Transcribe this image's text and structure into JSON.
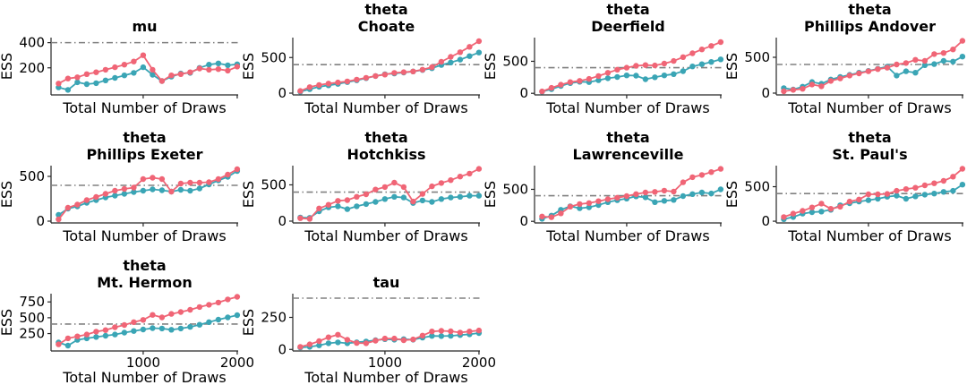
{
  "figure": {
    "background": "#ffffff",
    "colors": {
      "series_pink": "#f06576",
      "series_teal": "#3aa5b5",
      "reference_line": "#808080",
      "axis": "#262626",
      "text": "#000000"
    }
  },
  "chart_data": {
    "type": "line",
    "layout": "facet-grid-4-columns",
    "xlabel": "Total Number of Draws",
    "ylabel": "ESS",
    "x": [
      100,
      200,
      300,
      400,
      500,
      600,
      700,
      800,
      900,
      1000,
      1100,
      1200,
      1300,
      1400,
      1500,
      1600,
      1700,
      1800,
      1900,
      2000
    ],
    "x_ticks": [
      1000,
      2000
    ],
    "xlim": [
      20,
      2010
    ],
    "reference_line": {
      "y": 400,
      "style": "dash-dot",
      "color": "#808080"
    },
    "series_colors": {
      "pink": "#f06576",
      "teal": "#3aa5b5"
    },
    "facets": [
      {
        "id": "mu",
        "title_lines": [
          "mu"
        ],
        "y_ticks": [
          200,
          400
        ],
        "ylim": [
          -15,
          440
        ],
        "show_x_tick_labels": false,
        "pink": [
          75,
          115,
          125,
          150,
          165,
          185,
          205,
          225,
          250,
          300,
          185,
          95,
          140,
          150,
          165,
          195,
          185,
          190,
          178,
          210
        ],
        "teal": [
          45,
          25,
          85,
          70,
          78,
          100,
          120,
          140,
          160,
          205,
          145,
          95,
          130,
          155,
          160,
          200,
          225,
          235,
          220,
          228
        ]
      },
      {
        "id": "theta-choate",
        "title_lines": [
          "theta",
          "Choate"
        ],
        "y_ticks": [
          0,
          500
        ],
        "ylim": [
          -25,
          780
        ],
        "show_x_tick_labels": false,
        "pink": [
          30,
          85,
          115,
          135,
          150,
          165,
          190,
          215,
          240,
          260,
          285,
          295,
          305,
          330,
          365,
          440,
          510,
          575,
          650,
          730
        ],
        "teal": [
          20,
          55,
          90,
          110,
          130,
          155,
          180,
          210,
          240,
          265,
          275,
          290,
          305,
          325,
          350,
          395,
          430,
          470,
          520,
          570
        ]
      },
      {
        "id": "theta-deerfield",
        "title_lines": [
          "theta",
          "Deerfield"
        ],
        "y_ticks": [
          0,
          500
        ],
        "ylim": [
          -25,
          870
        ],
        "show_x_tick_labels": false,
        "pink": [
          30,
          85,
          135,
          175,
          195,
          225,
          270,
          320,
          370,
          400,
          430,
          440,
          435,
          465,
          505,
          565,
          625,
          685,
          740,
          800
        ],
        "teal": [
          25,
          65,
          115,
          160,
          180,
          175,
          205,
          235,
          255,
          280,
          275,
          220,
          250,
          280,
          300,
          345,
          420,
          455,
          490,
          530
        ]
      },
      {
        "id": "theta-phillips-andover",
        "title_lines": [
          "theta",
          "Phillips Andover"
        ],
        "y_ticks": [
          0,
          500
        ],
        "ylim": [
          -25,
          775
        ],
        "show_x_tick_labels": false,
        "pink": [
          25,
          45,
          60,
          120,
          95,
          170,
          205,
          245,
          275,
          305,
          335,
          355,
          400,
          420,
          465,
          450,
          545,
          560,
          610,
          730
        ],
        "teal": [
          70,
          50,
          90,
          155,
          130,
          190,
          225,
          255,
          285,
          310,
          340,
          370,
          245,
          305,
          285,
          390,
          405,
          450,
          440,
          510
        ]
      },
      {
        "id": "theta-phillips-exeter",
        "title_lines": [
          "theta",
          "Phillips Exeter"
        ],
        "y_ticks": [
          0,
          500
        ],
        "ylim": [
          -20,
          620
        ],
        "show_x_tick_labels": false,
        "pink": [
          20,
          150,
          185,
          235,
          270,
          305,
          340,
          360,
          375,
          470,
          485,
          470,
          330,
          420,
          430,
          430,
          435,
          470,
          520,
          580
        ],
        "teal": [
          70,
          140,
          165,
          205,
          235,
          265,
          285,
          305,
          325,
          340,
          355,
          345,
          330,
          350,
          340,
          365,
          410,
          455,
          495,
          560
        ]
      },
      {
        "id": "theta-hotchkiss",
        "title_lines": [
          "theta",
          "Hotchkiss"
        ],
        "y_ticks": [
          0,
          500
        ],
        "ylim": [
          -25,
          765
        ],
        "show_x_tick_labels": false,
        "pink": [
          40,
          30,
          175,
          225,
          280,
          290,
          335,
          370,
          435,
          470,
          530,
          470,
          270,
          375,
          480,
          525,
          565,
          615,
          655,
          720
        ],
        "teal": [
          50,
          45,
          135,
          190,
          205,
          165,
          205,
          235,
          265,
          305,
          335,
          325,
          250,
          285,
          265,
          305,
          325,
          335,
          350,
          350
        ]
      },
      {
        "id": "theta-lawrenceville",
        "title_lines": [
          "theta",
          "Lawrenceville"
        ],
        "y_ticks": [
          0,
          500
        ],
        "ylim": [
          -25,
          870
        ],
        "show_x_tick_labels": false,
        "pink": [
          75,
          65,
          125,
          230,
          270,
          285,
          315,
          345,
          370,
          395,
          425,
          450,
          460,
          480,
          465,
          610,
          690,
          725,
          770,
          820
        ],
        "teal": [
          40,
          90,
          180,
          235,
          205,
          220,
          255,
          300,
          330,
          355,
          390,
          375,
          300,
          320,
          335,
          395,
          425,
          450,
          435,
          500
        ]
      },
      {
        "id": "theta-st-pauls",
        "title_lines": [
          "theta",
          "St. Paul's"
        ],
        "y_ticks": [
          0,
          500
        ],
        "ylim": [
          -25,
          805
        ],
        "show_x_tick_labels": false,
        "pink": [
          60,
          110,
          150,
          200,
          255,
          180,
          210,
          285,
          315,
          390,
          390,
          395,
          440,
          465,
          485,
          520,
          550,
          585,
          645,
          760
        ],
        "teal": [
          30,
          60,
          110,
          130,
          140,
          165,
          230,
          260,
          285,
          305,
          325,
          355,
          370,
          325,
          360,
          385,
          400,
          425,
          440,
          530
        ]
      },
      {
        "id": "theta-mt-hermon",
        "title_lines": [
          "theta",
          "Mt. Hermon"
        ],
        "y_ticks": [
          250,
          500,
          750
        ],
        "ylim": [
          -25,
          880
        ],
        "show_x_tick_labels": true,
        "pink": [
          80,
          175,
          205,
          235,
          280,
          305,
          350,
          385,
          430,
          465,
          545,
          505,
          560,
          590,
          625,
          670,
          705,
          740,
          790,
          830
        ],
        "teal": [
          110,
          60,
          150,
          175,
          195,
          215,
          235,
          265,
          290,
          315,
          335,
          330,
          310,
          330,
          355,
          390,
          430,
          470,
          505,
          540
        ]
      },
      {
        "id": "tau",
        "title_lines": [
          "tau"
        ],
        "y_ticks": [
          0,
          250
        ],
        "ylim": [
          -12,
          435
        ],
        "show_x_tick_labels": true,
        "pink": [
          20,
          40,
          65,
          95,
          115,
          75,
          50,
          48,
          68,
          85,
          85,
          72,
          78,
          108,
          140,
          145,
          142,
          132,
          140,
          148
        ],
        "teal": [
          15,
          20,
          32,
          48,
          55,
          48,
          56,
          62,
          72,
          80,
          76,
          80,
          76,
          92,
          105,
          104,
          106,
          112,
          118,
          128
        ]
      }
    ]
  }
}
